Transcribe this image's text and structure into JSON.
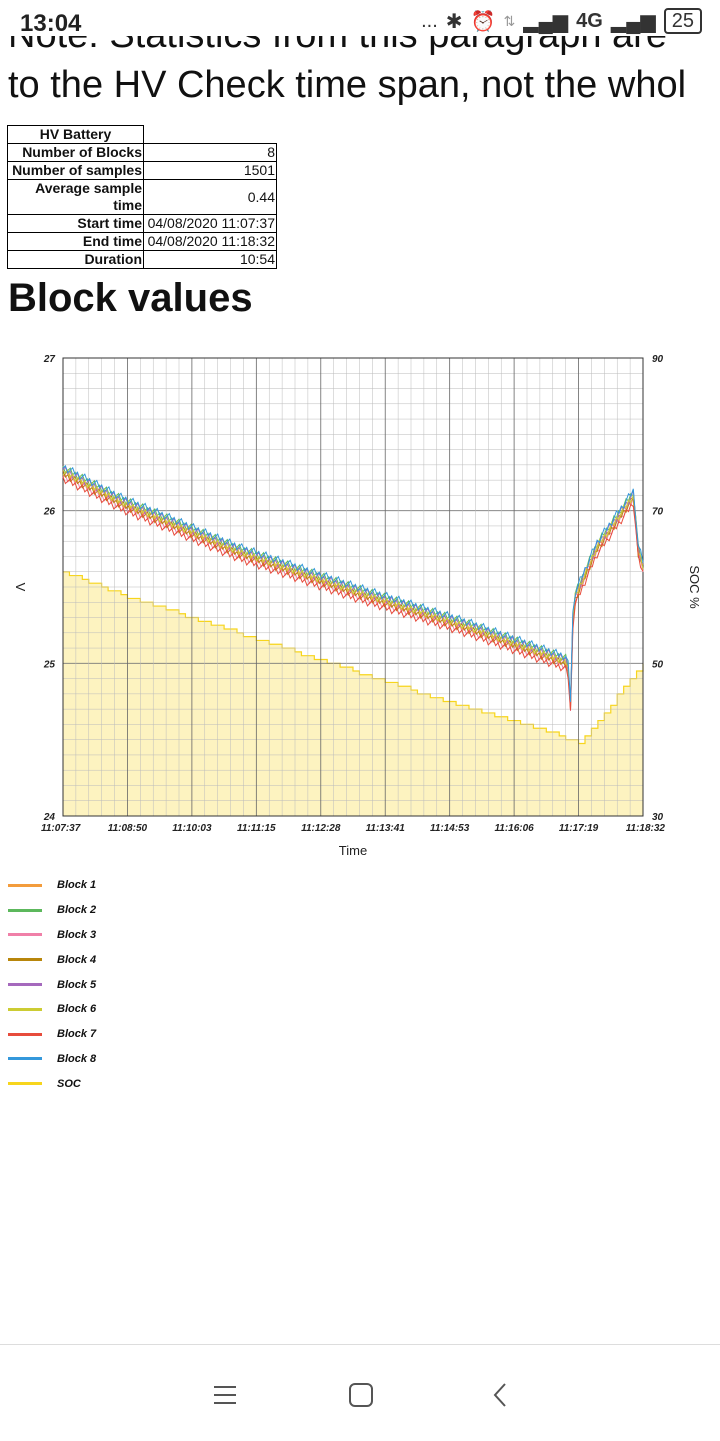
{
  "status_bar": {
    "time": "13:04",
    "dots": "...",
    "network": "4G",
    "battery": "25"
  },
  "page": {
    "cut_text": "Note: Statistics from this paragraph are",
    "note_text": "to the HV Check time span, not the whol",
    "heading": "Block values"
  },
  "table": {
    "title": "HV Battery",
    "rows": [
      {
        "label": "Number of Blocks",
        "value": "8"
      },
      {
        "label": "Number of samples",
        "value": "1501"
      },
      {
        "label": "Average sample time",
        "value": "0.44"
      },
      {
        "label": "Start time",
        "value": "04/08/2020 11:07:37"
      },
      {
        "label": "End time",
        "value": "04/08/2020 11:18:32"
      },
      {
        "label": "Duration",
        "value": "10:54"
      }
    ]
  },
  "chart_data": {
    "type": "line",
    "xlabel": "Time",
    "ylabel": "V",
    "y2label": "SOC %",
    "ylim": [
      24,
      27
    ],
    "y2lim": [
      30,
      90
    ],
    "y_ticks": [
      "24",
      "25",
      "26",
      "27"
    ],
    "y2_ticks": [
      "30",
      "50",
      "70",
      "90"
    ],
    "x_ticks": [
      "11:07:37",
      "11:08:50",
      "11:10:03",
      "11:11:15",
      "11:12:28",
      "11:13:41",
      "11:14:53",
      "11:16:06",
      "11:17:19",
      "11:18:32"
    ],
    "grid": true,
    "legend_placement": "bottom",
    "series": [
      {
        "name": "Block 1",
        "color": "#f39c3c",
        "axis": "left",
        "offset": 0.0
      },
      {
        "name": "Block 2",
        "color": "#5cb85c",
        "axis": "left",
        "offset": 0.03
      },
      {
        "name": "Block 3",
        "color": "#f080a8",
        "axis": "left",
        "offset": -0.02
      },
      {
        "name": "Block 4",
        "color": "#b8860b",
        "axis": "left",
        "offset": -0.01
      },
      {
        "name": "Block 5",
        "color": "#a569bd",
        "axis": "left",
        "offset": 0.02
      },
      {
        "name": "Block 6",
        "color": "#cccc33",
        "axis": "left",
        "offset": 0.01
      },
      {
        "name": "Block 7",
        "color": "#e74c3c",
        "axis": "left",
        "offset": -0.04
      },
      {
        "name": "Block 8",
        "color": "#3498db",
        "axis": "left",
        "offset": 0.04
      },
      {
        "name": "SOC",
        "color": "#f7d51c",
        "axis": "right"
      }
    ],
    "voltage_profile": [
      {
        "t": 0.0,
        "v": 26.25
      },
      {
        "t": 0.1,
        "v": 26.05
      },
      {
        "t": 0.3,
        "v": 25.73
      },
      {
        "t": 0.5,
        "v": 25.47
      },
      {
        "t": 0.7,
        "v": 25.23
      },
      {
        "t": 0.87,
        "v": 25.0
      },
      {
        "t": 0.875,
        "v": 24.72
      },
      {
        "t": 0.88,
        "v": 25.4
      },
      {
        "t": 0.92,
        "v": 25.75
      },
      {
        "t": 0.985,
        "v": 26.1
      },
      {
        "t": 0.99,
        "v": 25.75
      },
      {
        "t": 1.0,
        "v": 25.63
      }
    ],
    "soc_profile": [
      {
        "t": 0.0,
        "v": 62
      },
      {
        "t": 0.1,
        "v": 59
      },
      {
        "t": 0.2,
        "v": 56.5
      },
      {
        "t": 0.3,
        "v": 54
      },
      {
        "t": 0.4,
        "v": 51.5
      },
      {
        "t": 0.5,
        "v": 49
      },
      {
        "t": 0.6,
        "v": 46.5
      },
      {
        "t": 0.7,
        "v": 44
      },
      {
        "t": 0.8,
        "v": 42
      },
      {
        "t": 0.89,
        "v": 39.5
      },
      {
        "t": 1.0,
        "v": 50
      }
    ]
  },
  "nav_bar": {
    "menu_icon": "menu-icon",
    "home_icon": "home-icon",
    "back_icon": "back-icon"
  }
}
